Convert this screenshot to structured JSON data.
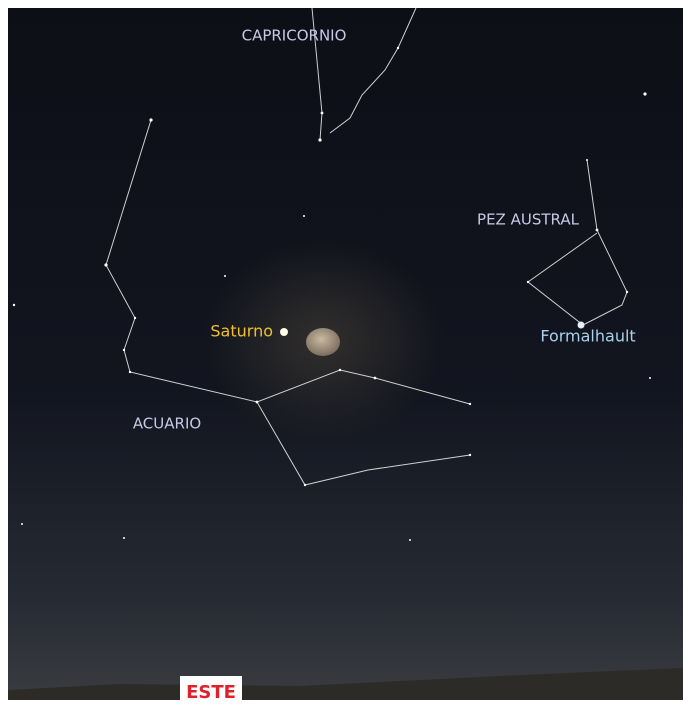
{
  "constellations": [
    {
      "label": "CAPRICORNIO"
    },
    {
      "label": "PEZ AUSTRAL"
    },
    {
      "label": "ACUARIO"
    }
  ],
  "objects": [
    {
      "label": "Saturno"
    },
    {
      "label": "Formalhault"
    }
  ],
  "direction": {
    "label": "ESTE"
  }
}
